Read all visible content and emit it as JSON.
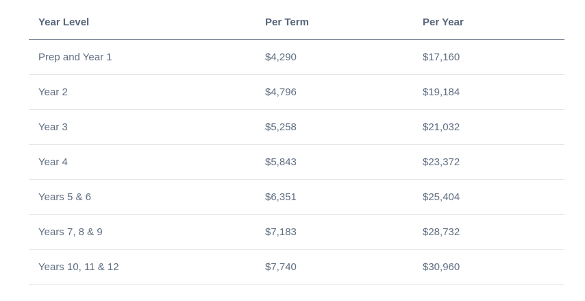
{
  "table": {
    "headers": [
      "Year Level",
      "Per Term",
      "Per Year"
    ],
    "rows": [
      [
        "Prep and Year 1",
        "$4,290",
        "$17,160"
      ],
      [
        "Year 2",
        "$4,796",
        "$19,184"
      ],
      [
        "Year 3",
        "$5,258",
        "$21,032"
      ],
      [
        "Year 4",
        "$5,843",
        "$23,372"
      ],
      [
        "Years 5 & 6",
        "$6,351",
        "$25,404"
      ],
      [
        "Years 7, 8 & 9",
        "$7,183",
        "$28,732"
      ],
      [
        "Years 10, 11 & 12",
        "$7,740",
        "$30,960"
      ]
    ]
  }
}
